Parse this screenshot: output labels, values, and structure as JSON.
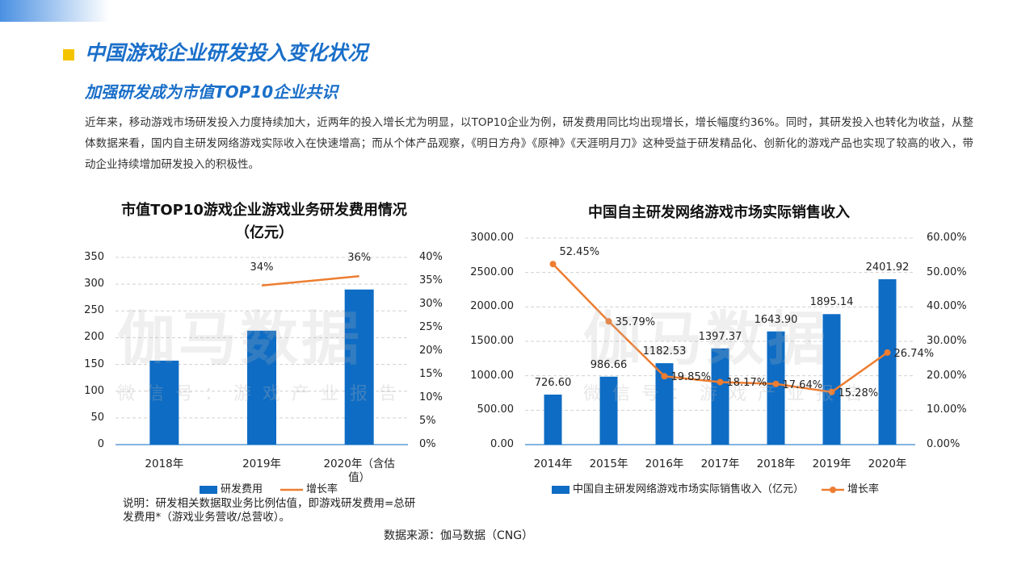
{
  "header": {
    "title": "中国游戏企业研发投入变化状况",
    "subtitle": "加强研发成为市值TOP10企业共识"
  },
  "paragraph": "近年来，移动游戏市场研发投入力度持续加大，近两年的投入增长尤为明显，以TOP10企业为例，研发费用同比均出现增长，增长幅度约36%。同时，其研发投入也转化为收益，从整体数据来看，国内自主研发网络游戏实际收入在快速增高；而从个体产品观察，《明日方舟》《原神》《天涯明月刀》这种受益于研发精品化、创新化的游戏产品也实现了较高的收入，带动企业持续增加研发投入的积极性。",
  "watermark": {
    "logo": "伽马数据",
    "caption": "微信号：游戏产业报告"
  },
  "chart_data": [
    {
      "type": "bar",
      "title": "市值TOP10游戏企业游戏业务研发费用情况（亿元）",
      "categories": [
        "2018年",
        "2019年",
        "2020年（含估值）"
      ],
      "series": [
        {
          "name": "研发费用",
          "color": "#0e6cc4",
          "values": [
            157,
            213,
            290
          ]
        },
        {
          "name": "增长率",
          "type": "line",
          "axis": "y2",
          "color": "#ed7d31",
          "values": [
            null,
            34,
            36
          ],
          "value_labels": [
            null,
            "34%",
            "36%"
          ]
        }
      ],
      "ylim": [
        0,
        350
      ],
      "yticks": [
        0,
        50,
        100,
        150,
        200,
        250,
        300,
        350
      ],
      "y2lim": [
        0,
        40
      ],
      "y2ticks": [
        {
          "value": 0,
          "label": "0%"
        },
        {
          "value": 5,
          "label": "5%"
        },
        {
          "value": 10,
          "label": "10%"
        },
        {
          "value": 15,
          "label": "15%"
        },
        {
          "value": 20,
          "label": "20%"
        },
        {
          "value": 25,
          "label": "25%"
        },
        {
          "value": 30,
          "label": "30%"
        },
        {
          "value": 35,
          "label": "35%"
        },
        {
          "value": 40,
          "label": "40%"
        }
      ],
      "grid": true,
      "note": "说明：研发相关数据取业务比例估值，即游戏研发费用=总研发费用*（游戏业务营收/总营收）。"
    },
    {
      "type": "bar",
      "title": "中国自主研发网络游戏市场实际销售收入",
      "categories": [
        "2014年",
        "2015年",
        "2016年",
        "2017年",
        "2018年",
        "2019年",
        "2020年"
      ],
      "series": [
        {
          "name": "中国自主研发网络游戏市场实际销售收入（亿元）",
          "color": "#0e6cc4",
          "values": [
            726.6,
            986.66,
            1182.53,
            1397.37,
            1643.9,
            1895.14,
            2401.92
          ],
          "value_labels": [
            "726.60",
            "986.66",
            "1182.53",
            "1397.37",
            "1643.90",
            "1895.14",
            "2401.92"
          ]
        },
        {
          "name": "增长率",
          "type": "line",
          "axis": "y2",
          "markers": true,
          "color": "#ed7d31",
          "values": [
            52.45,
            35.79,
            19.85,
            18.17,
            17.64,
            15.28,
            26.74
          ],
          "value_labels": [
            "52.45%",
            "35.79%",
            "19.85%",
            "18.17%",
            "17.64%",
            "15.28%",
            "26.74%"
          ]
        }
      ],
      "ylim": [
        0,
        3000
      ],
      "yticks": [
        {
          "value": 0,
          "label": "0.00"
        },
        {
          "value": 500,
          "label": "500.00"
        },
        {
          "value": 1000,
          "label": "1000.00"
        },
        {
          "value": 1500,
          "label": "1500.00"
        },
        {
          "value": 2000,
          "label": "2000.00"
        },
        {
          "value": 2500,
          "label": "2500.00"
        },
        {
          "value": 3000,
          "label": "3000.00"
        }
      ],
      "y2lim": [
        0,
        60
      ],
      "y2ticks": [
        {
          "value": 0,
          "label": "0.00%"
        },
        {
          "value": 10,
          "label": "10.00%"
        },
        {
          "value": 20,
          "label": "20.00%"
        },
        {
          "value": 30,
          "label": "30.00%"
        },
        {
          "value": 40,
          "label": "40.00%"
        },
        {
          "value": 50,
          "label": "50.00%"
        },
        {
          "value": 60,
          "label": "60.00%"
        }
      ],
      "grid": true
    }
  ],
  "source": "数据来源：伽马数据（CNG）"
}
